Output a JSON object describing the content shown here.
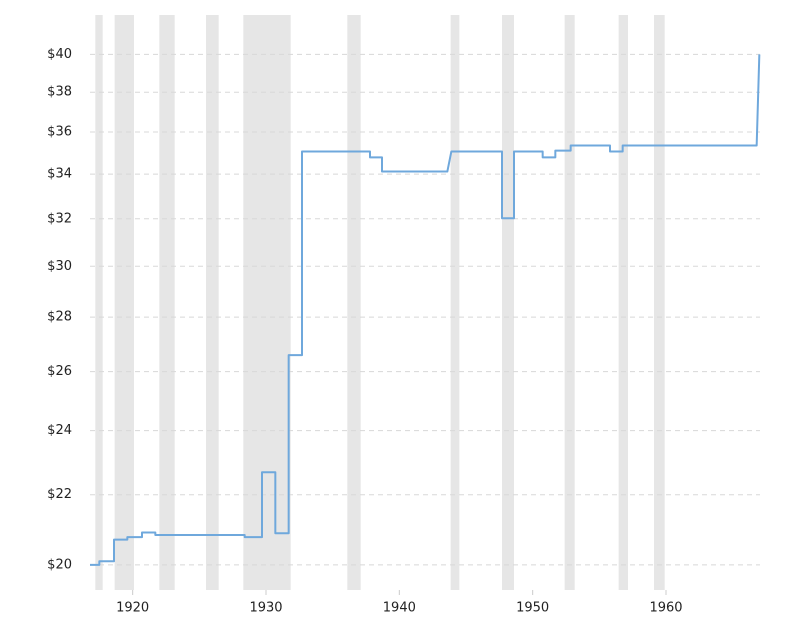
{
  "chart_data": {
    "type": "line",
    "log_scale_y": true,
    "grid": true,
    "color": "#6fa8dc",
    "band_color": "#e6e6e6",
    "x": [
      1916.8,
      1917.5,
      1917.5,
      1918.6,
      1918.6,
      1919.6,
      1919.6,
      1920.7,
      1920.7,
      1921.7,
      1921.7,
      1928.4,
      1928.4,
      1929.7,
      1929.7,
      1930.7,
      1930.7,
      1931.7,
      1931.7,
      1932.7,
      1932.7,
      1937.8,
      1937.8,
      1938.7,
      1938.7,
      1943.6,
      1943.9,
      1947.7,
      1947.7,
      1948.6,
      1948.6,
      1950.75,
      1950.75,
      1951.7,
      1951.7,
      1952.85,
      1952.85,
      1955.8,
      1955.8,
      1956.75,
      1956.75,
      1966.8,
      1967.0
    ],
    "values": [
      20.0,
      20.0,
      20.1,
      20.1,
      20.7,
      20.7,
      20.77,
      20.77,
      20.9,
      20.9,
      20.83,
      20.83,
      20.77,
      20.77,
      22.68,
      22.68,
      20.88,
      20.88,
      26.59,
      26.59,
      35.06,
      35.06,
      34.78,
      34.78,
      34.12,
      34.12,
      35.06,
      35.06,
      32.02,
      32.02,
      35.06,
      35.06,
      34.78,
      34.78,
      35.1,
      35.1,
      35.35,
      35.35,
      35.06,
      35.06,
      35.35,
      35.35,
      40.0
    ],
    "shaded_ranges": [
      [
        1917.2,
        1917.75
      ],
      [
        1918.65,
        1920.1
      ],
      [
        1922.0,
        1923.15
      ],
      [
        1925.5,
        1926.45
      ],
      [
        1928.3,
        1931.85
      ],
      [
        1936.1,
        1937.1
      ],
      [
        1943.85,
        1944.5
      ],
      [
        1947.7,
        1948.6
      ],
      [
        1952.4,
        1953.15
      ],
      [
        1956.45,
        1957.15
      ],
      [
        1959.1,
        1959.9
      ]
    ],
    "xlim": [
      1916.8,
      1967.05
    ],
    "xticks": [
      1920,
      1930,
      1940,
      1950,
      1960
    ],
    "ylim": [
      19.33,
      42.2
    ],
    "yticks": [
      {
        "value": 20,
        "label": "$20"
      },
      {
        "value": 22,
        "label": "$22"
      },
      {
        "value": 24,
        "label": "$24"
      },
      {
        "value": 26,
        "label": "$26"
      },
      {
        "value": 28,
        "label": "$28"
      },
      {
        "value": 30,
        "label": "$30"
      },
      {
        "value": 32,
        "label": "$32"
      },
      {
        "value": 34,
        "label": "$34"
      },
      {
        "value": 36,
        "label": "$36"
      },
      {
        "value": 38,
        "label": "$38"
      },
      {
        "value": 40,
        "label": "$40"
      }
    ]
  }
}
